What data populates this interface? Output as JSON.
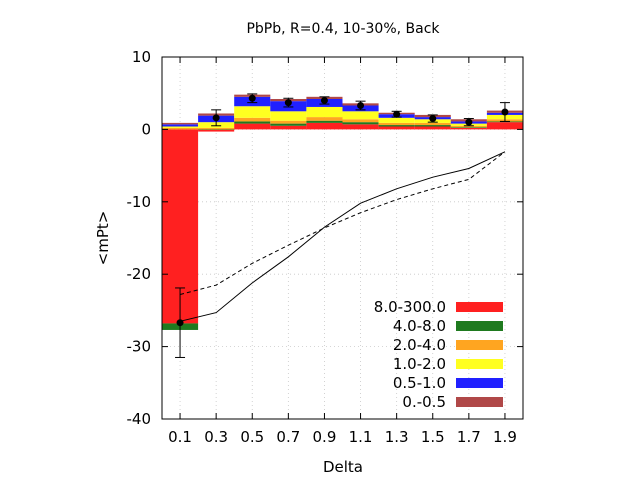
{
  "chart_data": {
    "type": "bar",
    "stacked": true,
    "title": "PbPb, R=0.4, 10-30%, Back",
    "xlabel": "Delta",
    "ylabel": "<mPt>",
    "xlim": [
      0.0,
      2.0
    ],
    "ylim": [
      -40,
      10
    ],
    "x_ticks": [
      "0.1",
      "0.3",
      "0.5",
      "0.7",
      "0.9",
      "1.1",
      "1.3",
      "1.5",
      "1.7",
      "1.9"
    ],
    "y_ticks": [
      "10",
      "0",
      "-10",
      "-20",
      "-30",
      "-40"
    ],
    "grid": true,
    "legend_position": "bottom-right",
    "x": [
      0.1,
      0.3,
      0.5,
      0.7,
      0.9,
      1.1,
      1.3,
      1.5,
      1.7,
      1.9
    ],
    "series": [
      {
        "name": "8.0-300.0",
        "color": "#ff2020",
        "values": [
          -26.8,
          -0.3,
          0.8,
          0.5,
          0.9,
          0.7,
          0.4,
          0.4,
          0.2,
          1.0
        ]
      },
      {
        "name": "4.0-8.0",
        "color": "#1f7a1f",
        "values": [
          -0.9,
          0.0,
          0.3,
          0.3,
          0.3,
          0.3,
          0.2,
          0.2,
          0.1,
          0.1
        ]
      },
      {
        "name": "2.0-4.0",
        "color": "#ffa520",
        "values": [
          0.2,
          0.2,
          0.5,
          0.4,
          0.5,
          0.4,
          0.3,
          0.3,
          0.2,
          0.3
        ]
      },
      {
        "name": "1.0-2.0",
        "color": "#ffff20",
        "values": [
          0.2,
          0.8,
          1.6,
          1.3,
          1.4,
          1.1,
          0.7,
          0.5,
          0.3,
          0.6
        ]
      },
      {
        "name": "0.5-1.0",
        "color": "#2020ff",
        "values": [
          0.3,
          0.9,
          1.3,
          1.4,
          1.1,
          0.8,
          0.5,
          0.3,
          0.3,
          0.3
        ]
      },
      {
        "name": "0.-0.5",
        "color": "#b04848",
        "values": [
          0.2,
          0.3,
          0.3,
          0.3,
          0.3,
          0.3,
          0.2,
          0.3,
          0.3,
          0.3
        ]
      }
    ],
    "points": {
      "y": [
        -26.7,
        1.6,
        4.3,
        3.7,
        4.0,
        3.3,
        2.1,
        1.5,
        1.0,
        2.4
      ],
      "yerr": [
        4.8,
        1.1,
        0.6,
        0.6,
        0.5,
        0.6,
        0.4,
        0.5,
        0.5,
        1.3
      ]
    },
    "solid_line": {
      "x": [
        0.1,
        0.3,
        0.5,
        0.7,
        0.9,
        1.1,
        1.3,
        1.5,
        1.7,
        1.9
      ],
      "y": [
        -26.5,
        -25.3,
        -21.2,
        -17.6,
        -13.5,
        -10.2,
        -8.2,
        -6.6,
        -5.4,
        -3.1
      ]
    },
    "dashed_line": {
      "x": [
        0.1,
        0.3,
        0.5,
        0.7,
        0.9,
        1.1,
        1.3,
        1.5,
        1.7,
        1.9
      ],
      "y": [
        -22.8,
        -21.5,
        -18.5,
        -16.0,
        -13.6,
        -11.5,
        -9.7,
        -8.2,
        -6.9,
        -3.1
      ]
    }
  }
}
